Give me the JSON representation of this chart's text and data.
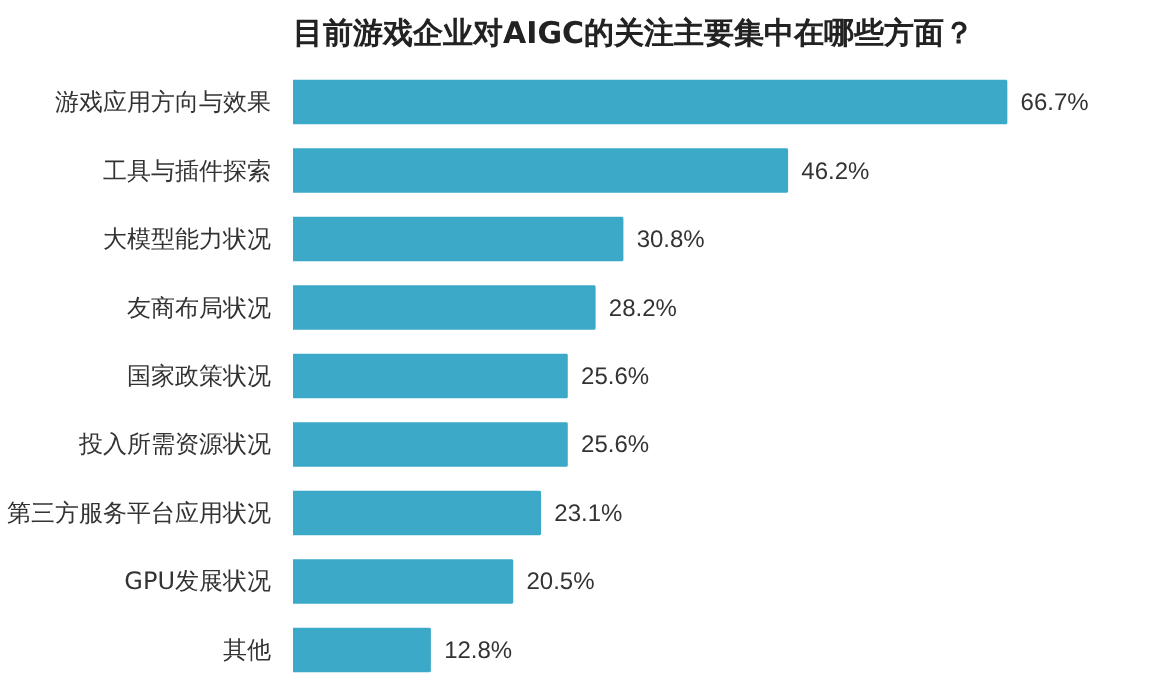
{
  "chart_data": {
    "type": "bar",
    "orientation": "horizontal",
    "title": "目前游戏企业对AIGC的关注主要集中在哪些方面？",
    "categories": [
      "游戏应用方向与效果",
      "工具与插件探索",
      "大模型能力状况",
      "友商布局状况",
      "国家政策状况",
      "投入所需资源状况",
      "第三方服务平台应用状况",
      "GPU发展状况",
      "其他"
    ],
    "values": [
      66.7,
      46.2,
      30.8,
      28.2,
      25.6,
      25.6,
      23.1,
      20.5,
      12.8
    ],
    "value_labels": [
      "66.7%",
      "46.2%",
      "30.8%",
      "28.2%",
      "25.6%",
      "25.6%",
      "23.1%",
      "20.5%",
      "12.8%"
    ],
    "color": "#3ba9c7",
    "grid": false
  }
}
